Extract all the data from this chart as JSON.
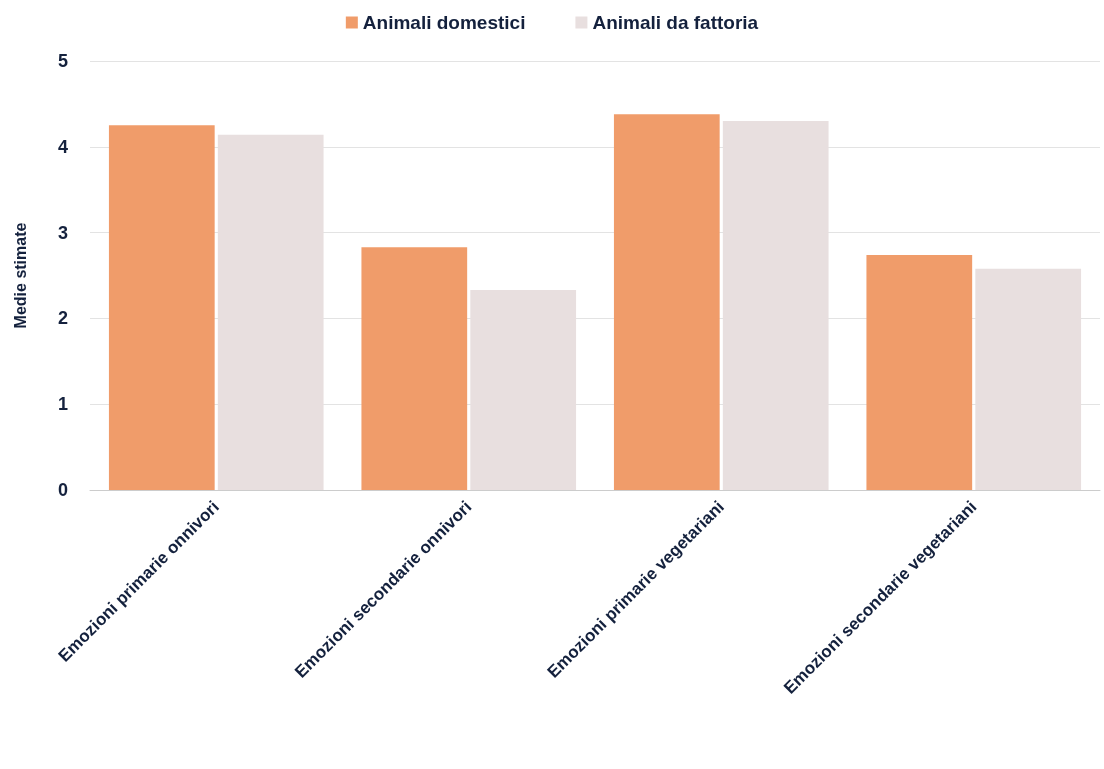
{
  "chart_data": {
    "type": "bar",
    "ylabel": "Medie stimate",
    "categories": [
      "Emozioni primarie onnivori",
      "Emozioni secondarie onnivori",
      "Emozioni primarie vegetariani",
      "Emozioni secondarie vegetariani"
    ],
    "series": [
      {
        "name": "Animali domestici",
        "color": "#f09c6a",
        "values": [
          4.25,
          2.83,
          4.38,
          2.74
        ]
      },
      {
        "name": "Animali da fattoria",
        "color": "#e8dfdf",
        "values": [
          4.14,
          2.33,
          4.3,
          2.58
        ]
      }
    ],
    "ylim": [
      0,
      5
    ],
    "yticks": [
      0,
      1,
      2,
      3,
      4,
      5
    ],
    "grid": "y",
    "legend": "top"
  }
}
